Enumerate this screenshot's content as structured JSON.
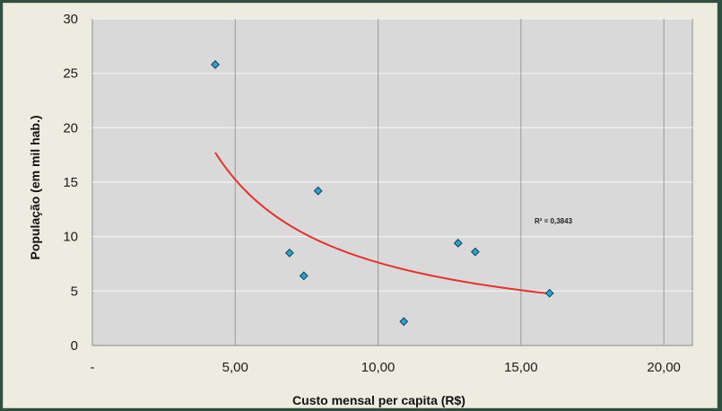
{
  "chart_data": {
    "type": "scatter",
    "title": "",
    "xlabel": "Custo mensal per capita (R$)",
    "ylabel": "População (em mil hab.)",
    "xlim": [
      0,
      21
    ],
    "ylim": [
      0,
      30
    ],
    "x_ticks": [
      0,
      5,
      10,
      15,
      20
    ],
    "x_tick_labels": [
      "-",
      "5,00",
      "10,00",
      "15,00",
      "20,00"
    ],
    "y_ticks": [
      0,
      5,
      10,
      15,
      20,
      25,
      30
    ],
    "y_tick_labels": [
      "0",
      "5",
      "10",
      "15",
      "20",
      "25",
      "30"
    ],
    "grid": true,
    "series": [
      {
        "points": [
          {
            "x": 4.3,
            "y": 25.8
          },
          {
            "x": 7.9,
            "y": 14.2
          },
          {
            "x": 6.9,
            "y": 8.5
          },
          {
            "x": 7.4,
            "y": 6.4
          },
          {
            "x": 10.9,
            "y": 2.2
          },
          {
            "x": 12.8,
            "y": 9.4
          },
          {
            "x": 13.4,
            "y": 8.6
          },
          {
            "x": 16.0,
            "y": 4.8
          }
        ],
        "color": "#29a3cf"
      }
    ],
    "trendline": {
      "type": "power",
      "a": 76.2,
      "b": -1.0,
      "x_range": [
        4.3,
        16.0
      ],
      "color": "#e8302a",
      "r_squared_label": "R² = 0,3843"
    },
    "colors": {
      "plot_background": "#d9d9d9",
      "frame_background": "#eeebe1",
      "gridline": "#9a9a9a"
    }
  }
}
